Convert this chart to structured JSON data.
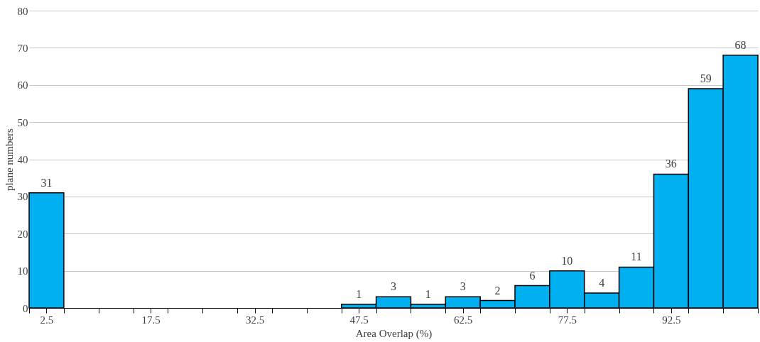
{
  "chart_data": {
    "type": "histogram",
    "xlabel": "Area Overlap (%)",
    "ylabel": "plane numbers",
    "bins": [
      0,
      5,
      10,
      15,
      20,
      25,
      30,
      35,
      40,
      45,
      50,
      55,
      60,
      65,
      70,
      75,
      80,
      85,
      90,
      95,
      100,
      105
    ],
    "values": [
      31,
      0,
      0,
      0,
      0,
      0,
      0,
      0,
      0,
      1,
      3,
      1,
      3,
      2,
      6,
      10,
      4,
      11,
      36,
      59,
      68
    ],
    "value_labels": [
      "31",
      null,
      null,
      null,
      null,
      null,
      null,
      null,
      null,
      "1",
      "3",
      "1",
      "3",
      "2",
      "6",
      "10",
      "4",
      "11",
      "36",
      "59",
      "68"
    ],
    "color": "#00b0f0",
    "xlim": [
      0,
      105
    ],
    "xticks": [
      {
        "value": 0,
        "label": null
      },
      2.5,
      {
        "value": 5,
        "label": null
      },
      {
        "value": 10,
        "label": null
      },
      {
        "value": 15,
        "label": null
      },
      17.5,
      {
        "value": 20,
        "label": null
      },
      {
        "value": 25,
        "label": null
      },
      {
        "value": 30,
        "label": null
      },
      32.5,
      {
        "value": 35,
        "label": null
      },
      {
        "value": 40,
        "label": null
      },
      {
        "value": 45,
        "label": null
      },
      47.5,
      {
        "value": 50,
        "label": null
      },
      {
        "value": 55,
        "label": null
      },
      {
        "value": 60,
        "label": null
      },
      62.5,
      {
        "value": 65,
        "label": null
      },
      {
        "value": 70,
        "label": null
      },
      {
        "value": 75,
        "label": null
      },
      77.5,
      {
        "value": 80,
        "label": null
      },
      {
        "value": 85,
        "label": null
      },
      {
        "value": 90,
        "label": null
      },
      92.5,
      {
        "value": 95,
        "label": null
      },
      {
        "value": 100,
        "label": null
      },
      {
        "value": 105,
        "label": null
      }
    ],
    "ylim": [
      0,
      80
    ],
    "yticks": [
      0,
      10,
      20,
      30,
      40,
      50,
      60,
      70,
      80
    ],
    "grid": "y"
  }
}
